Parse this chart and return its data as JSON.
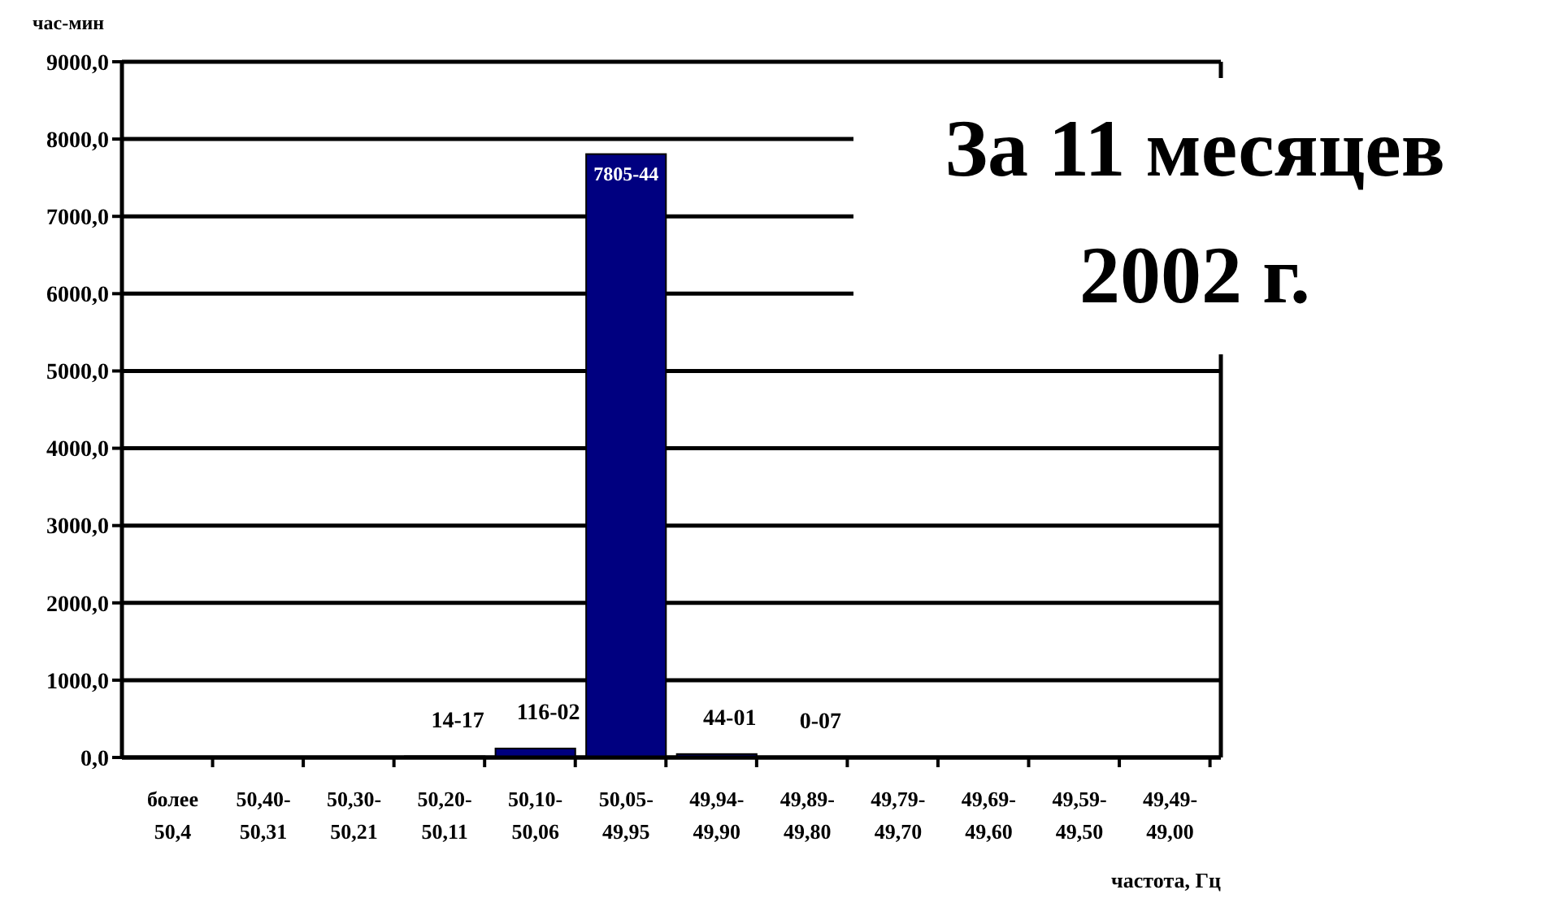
{
  "chart_data": {
    "type": "bar",
    "title": "За 11 месяцев 2002 г.",
    "ylabel": "час-мин",
    "xlabel": "частота, Гц",
    "categories": [
      "более 50,4",
      "50,40-50,31",
      "50,30-50,21",
      "50,20-50,11",
      "50,10-50,06",
      "50,05-49,95",
      "49,94-49,90",
      "49,89-49,80",
      "49,79-49,70",
      "49,69-49,60",
      "49,59-49,50",
      "49,49-49,00"
    ],
    "values": [
      null,
      null,
      null,
      14.3,
      116.0,
      7805.7,
      44.0,
      0.1,
      null,
      null,
      null,
      null
    ],
    "value_labels": [
      null,
      null,
      null,
      "14-17",
      "116-02",
      "7805-44",
      "44-01",
      "0-07",
      null,
      null,
      null,
      null
    ],
    "color": "#000080",
    "ylim": [
      0,
      9000
    ],
    "yticks": [
      {
        "value": 0,
        "label": "0,0"
      },
      {
        "value": 1000,
        "label": "1000,0"
      },
      {
        "value": 2000,
        "label": "2000,0"
      },
      {
        "value": 3000,
        "label": "3000,0"
      },
      {
        "value": 4000,
        "label": "4000,0"
      },
      {
        "value": 5000,
        "label": "5000,0"
      },
      {
        "value": 6000,
        "label": "6000,0"
      },
      {
        "value": 7000,
        "label": "7000,0"
      },
      {
        "value": 8000,
        "label": "8000,0"
      },
      {
        "value": 9000,
        "label": "9000,0"
      }
    ],
    "grid": "y"
  }
}
